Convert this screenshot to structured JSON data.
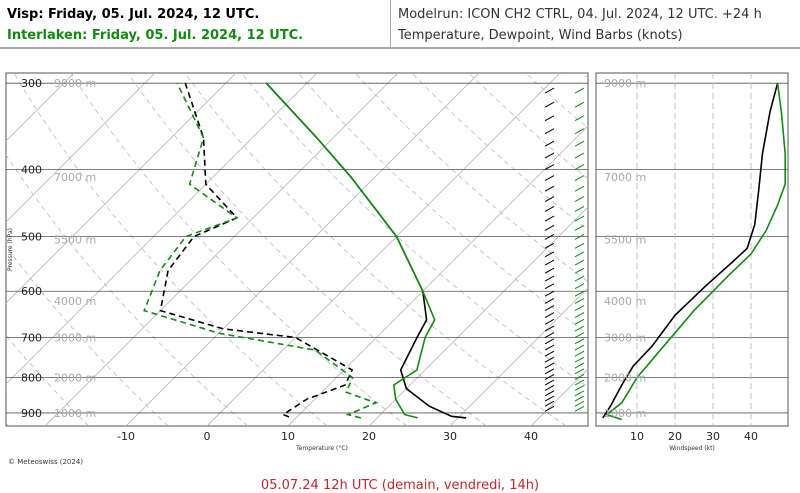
{
  "header": {
    "location1": "Visp: Friday, 05. Jul. 2024, 12 UTC.",
    "location2": "Interlaken: Friday, 05. Jul. 2024, 12 UTC.",
    "modelrun": "Modelrun: ICON CH2 CTRL, 04. Jul. 2024, 12 UTC. +24 h",
    "variables": "Temperature, Dewpoint, Wind Barbs (knots)"
  },
  "copyright": "© Meteoswiss (2024)",
  "footer": "05.07.24 12h UTC (demain, vendredi, 14h)",
  "colors": {
    "visp": "#000000",
    "interlaken": "#138a13",
    "footer": "#c0282d",
    "grid": "#bbbbbb"
  },
  "chart_data": [
    {
      "type": "line",
      "subtype": "skew-t",
      "xlabel": "Temperature (°C)",
      "ylabel": "Pressure (hPa)",
      "xlim": [
        -20,
        45
      ],
      "ylim": [
        940,
        290
      ],
      "x_ticks": [
        -10,
        0,
        10,
        20,
        30,
        40
      ],
      "y_ticks": [
        300,
        400,
        500,
        600,
        700,
        800,
        900
      ],
      "height_labels": [
        {
          "p": 300,
          "label": "9000 m"
        },
        {
          "p": 410,
          "label": "7000 m"
        },
        {
          "p": 505,
          "label": "5500 m"
        },
        {
          "p": 620,
          "label": "4000 m"
        },
        {
          "p": 700,
          "label": "3000 m"
        },
        {
          "p": 800,
          "label": "2000 m"
        },
        {
          "p": 900,
          "label": "1000 m"
        }
      ],
      "series": [
        {
          "name": "Visp",
          "role": "temperature",
          "color": "#000000",
          "dashed": false,
          "points": [
            [
              31,
              915
            ],
            [
              29,
              910
            ],
            [
              25,
              880
            ],
            [
              20,
              830
            ],
            [
              17,
              780
            ],
            [
              15,
              700
            ],
            [
              14,
              660
            ],
            [
              10,
              600
            ],
            [
              0,
              500
            ],
            [
              -13,
              410
            ],
            [
              -22,
              360
            ],
            [
              -35,
              300
            ]
          ]
        },
        {
          "name": "Visp",
          "role": "dewpoint",
          "color": "#000000",
          "dashed": true,
          "points": [
            [
              9,
              912
            ],
            [
              8,
              905
            ],
            [
              9,
              860
            ],
            [
              12,
              820
            ],
            [
              11,
              780
            ],
            [
              0,
              700
            ],
            [
              -10,
              680
            ],
            [
              -20,
              640
            ],
            [
              -24,
              560
            ],
            [
              -25,
              500
            ],
            [
              -22,
              470
            ],
            [
              -30,
              420
            ],
            [
              -36,
              360
            ],
            [
              -45,
              300
            ]
          ]
        },
        {
          "name": "Interlaken",
          "role": "temperature",
          "color": "#138a13",
          "dashed": false,
          "points": [
            [
              25,
              915
            ],
            [
              23,
              905
            ],
            [
              20,
              860
            ],
            [
              18,
              820
            ],
            [
              19,
              780
            ],
            [
              16,
              700
            ],
            [
              15,
              660
            ],
            [
              10,
              600
            ],
            [
              0,
              500
            ],
            [
              -13,
              410
            ],
            [
              -22,
              360
            ],
            [
              -35,
              300
            ]
          ]
        },
        {
          "name": "Interlaken",
          "role": "dewpoint",
          "color": "#138a13",
          "dashed": true,
          "points": [
            [
              18,
              915
            ],
            [
              16,
              905
            ],
            [
              18,
              870
            ],
            [
              13,
              840
            ],
            [
              12,
              800
            ],
            [
              4,
              730
            ],
            [
              -10,
              690
            ],
            [
              -22,
              640
            ],
            [
              -25,
              560
            ],
            [
              -26,
              500
            ],
            [
              -22,
              470
            ],
            [
              -32,
              420
            ],
            [
              -36,
              360
            ],
            [
              -46,
              300
            ]
          ]
        }
      ]
    },
    {
      "type": "line",
      "xlabel": "Windspeed (kt)",
      "xlim": [
        0,
        50
      ],
      "ylim": [
        940,
        290
      ],
      "x_ticks": [
        10,
        20,
        30,
        40
      ],
      "series": [
        {
          "name": "Visp",
          "color": "#000000",
          "points": [
            [
              1,
              915
            ],
            [
              3,
              880
            ],
            [
              6,
              820
            ],
            [
              9,
              770
            ],
            [
              14,
              720
            ],
            [
              20,
              650
            ],
            [
              28,
              590
            ],
            [
              35,
              545
            ],
            [
              39,
              520
            ],
            [
              41,
              480
            ],
            [
              42,
              430
            ],
            [
              43,
              380
            ],
            [
              45,
              330
            ],
            [
              47,
              300
            ]
          ]
        },
        {
          "name": "Interlaken",
          "color": "#138a13",
          "points": [
            [
              6,
              920
            ],
            [
              2,
              905
            ],
            [
              6,
              870
            ],
            [
              10,
              800
            ],
            [
              18,
              710
            ],
            [
              25,
              640
            ],
            [
              34,
              570
            ],
            [
              40,
              530
            ],
            [
              44,
              490
            ],
            [
              47,
              450
            ],
            [
              49,
              420
            ],
            [
              49,
              380
            ],
            [
              48,
              330
            ],
            [
              47,
              300
            ]
          ]
        }
      ]
    }
  ]
}
